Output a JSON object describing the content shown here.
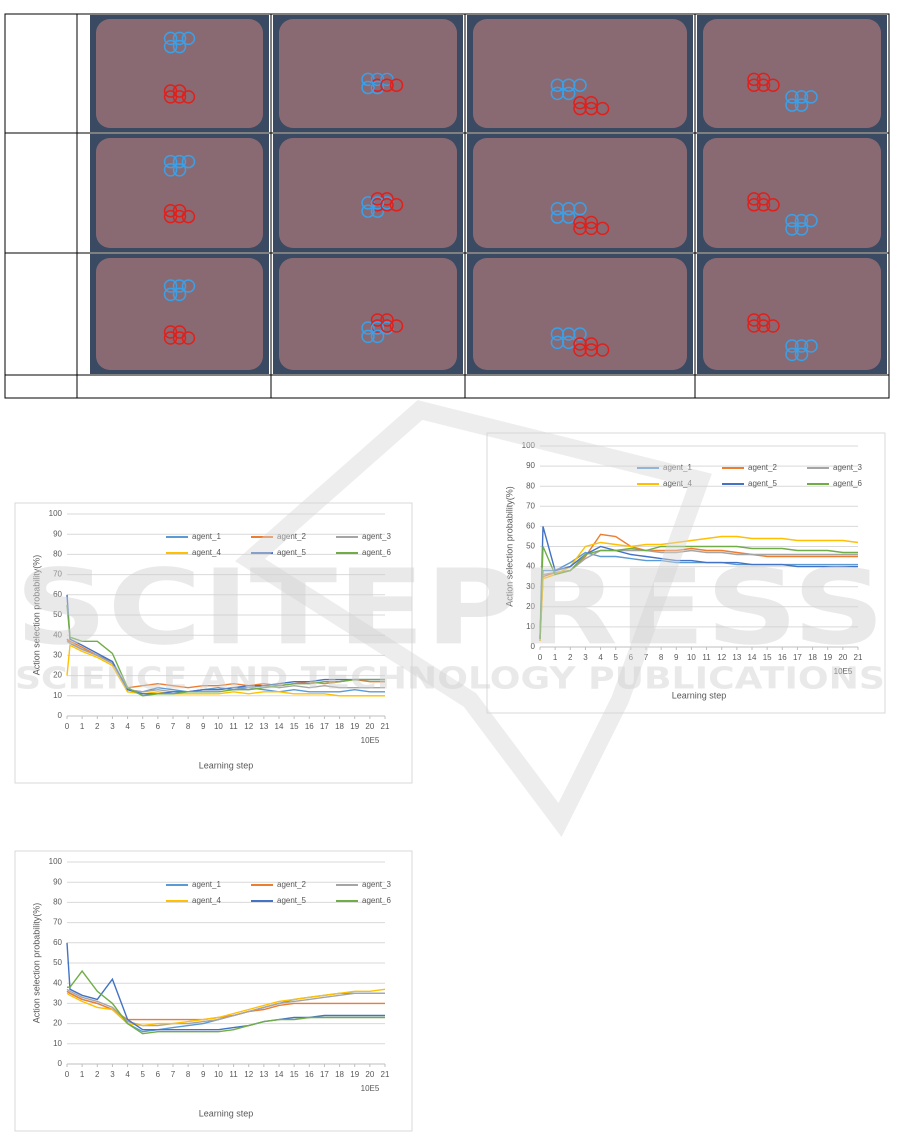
{
  "watermark": {
    "brand": "SCITEPRESS",
    "tagline": "SCIENCE AND TECHNOLOGY PUBLICATIONS"
  },
  "chart_data": [
    {
      "type": "line",
      "x_label": "Learning step",
      "x_unit": "10E5",
      "y_label": "Action selection probability(%)",
      "x": [
        0,
        0.2,
        1,
        2,
        3,
        4,
        5,
        6,
        7,
        8,
        9,
        10,
        11,
        12,
        13,
        14,
        15,
        16,
        17,
        18,
        19,
        20,
        21
      ],
      "xlim": [
        0,
        21
      ],
      "xticks": [
        0,
        1,
        2,
        3,
        4,
        5,
        6,
        7,
        8,
        9,
        10,
        11,
        12,
        13,
        14,
        15,
        16,
        17,
        18,
        19,
        20,
        21
      ],
      "ylim": [
        0,
        100
      ],
      "yticks": [
        0,
        10,
        20,
        30,
        40,
        50,
        60,
        70,
        80,
        90,
        100
      ],
      "grid": true,
      "series": [
        {
          "name": "agent_1",
          "color": "#5B9BD5",
          "values": [
            38,
            36,
            33,
            30,
            27,
            13,
            12,
            14,
            13,
            12,
            13,
            14,
            13,
            14,
            13,
            12,
            13,
            12,
            12,
            12,
            13,
            12,
            12
          ]
        },
        {
          "name": "agent_2",
          "color": "#ED7D31",
          "values": [
            38,
            37,
            34,
            30,
            26,
            14,
            15,
            16,
            15,
            14,
            15,
            15,
            16,
            15,
            16,
            15,
            16,
            17,
            16,
            17,
            18,
            17,
            17
          ]
        },
        {
          "name": "agent_3",
          "color": "#A5A5A5",
          "values": [
            37,
            36,
            33,
            30,
            26,
            13,
            12,
            13,
            12,
            12,
            13,
            13,
            14,
            14,
            15,
            14,
            15,
            14,
            15,
            14,
            14,
            14,
            14
          ]
        },
        {
          "name": "agent_4",
          "color": "#FFC000",
          "values": [
            20,
            35,
            32,
            29,
            25,
            12,
            11,
            12,
            11,
            11,
            11,
            11,
            12,
            11,
            12,
            12,
            11,
            11,
            11,
            10,
            10,
            10,
            10
          ]
        },
        {
          "name": "agent_5",
          "color": "#4472C4",
          "values": [
            60,
            38,
            35,
            31,
            27,
            13,
            11,
            11,
            12,
            12,
            13,
            13,
            14,
            15,
            15,
            16,
            17,
            17,
            18,
            18,
            18,
            18,
            18
          ]
        },
        {
          "name": "agent_6",
          "color": "#70AD47",
          "values": [
            55,
            39,
            37,
            37,
            31,
            14,
            10,
            11,
            11,
            12,
            12,
            12,
            13,
            13,
            14,
            15,
            16,
            16,
            17,
            17,
            18,
            18,
            18
          ]
        }
      ]
    },
    {
      "type": "line",
      "x_label": "Learning step",
      "x_unit": "10E5",
      "y_label": "Action selection probability(%)",
      "x": [
        0,
        0.2,
        1,
        2,
        3,
        4,
        5,
        6,
        7,
        8,
        9,
        10,
        11,
        12,
        13,
        14,
        15,
        16,
        17,
        18,
        19,
        20,
        21
      ],
      "xlim": [
        0,
        21
      ],
      "xticks": [
        0,
        1,
        2,
        3,
        4,
        5,
        6,
        7,
        8,
        9,
        10,
        11,
        12,
        13,
        14,
        15,
        16,
        17,
        18,
        19,
        20,
        21
      ],
      "ylim": [
        0,
        100
      ],
      "yticks": [
        0,
        10,
        20,
        30,
        40,
        50,
        60,
        70,
        80,
        90,
        100
      ],
      "grid": true,
      "series": [
        {
          "name": "agent_1",
          "color": "#5B9BD5",
          "values": [
            5,
            38,
            38,
            42,
            47,
            45,
            45,
            44,
            43,
            43,
            42,
            42,
            42,
            42,
            41,
            41,
            41,
            41,
            41,
            41,
            41,
            41,
            41
          ]
        },
        {
          "name": "agent_2",
          "color": "#ED7D31",
          "values": [
            3,
            35,
            37,
            38,
            45,
            56,
            55,
            50,
            48,
            48,
            48,
            49,
            48,
            48,
            47,
            46,
            45,
            45,
            45,
            45,
            45,
            45,
            45
          ]
        },
        {
          "name": "agent_3",
          "color": "#A5A5A5",
          "values": [
            4,
            36,
            37,
            38,
            44,
            48,
            48,
            48,
            48,
            47,
            47,
            48,
            47,
            47,
            46,
            46,
            46,
            46,
            46,
            46,
            46,
            46,
            46
          ]
        },
        {
          "name": "agent_4",
          "color": "#FFC000",
          "values": [
            3,
            34,
            36,
            40,
            50,
            52,
            51,
            50,
            51,
            51,
            52,
            53,
            54,
            55,
            55,
            54,
            54,
            54,
            53,
            53,
            53,
            53,
            52
          ]
        },
        {
          "name": "agent_5",
          "color": "#4472C4",
          "values": [
            4,
            60,
            38,
            40,
            46,
            50,
            48,
            46,
            45,
            44,
            43,
            43,
            42,
            42,
            42,
            41,
            41,
            41,
            40,
            40,
            40,
            40,
            40
          ]
        },
        {
          "name": "agent_6",
          "color": "#70AD47",
          "values": [
            4,
            50,
            36,
            38,
            46,
            48,
            48,
            49,
            48,
            50,
            50,
            50,
            50,
            50,
            50,
            49,
            49,
            49,
            48,
            48,
            48,
            47,
            47
          ]
        }
      ]
    },
    {
      "type": "line",
      "x_label": "Learning step",
      "x_unit": "10E5",
      "y_label": "Action selection probability(%)",
      "x": [
        0,
        0.2,
        1,
        2,
        3,
        4,
        5,
        6,
        7,
        8,
        9,
        10,
        11,
        12,
        13,
        14,
        15,
        16,
        17,
        18,
        19,
        20,
        21
      ],
      "xlim": [
        0,
        21
      ],
      "xticks": [
        0,
        1,
        2,
        3,
        4,
        5,
        6,
        7,
        8,
        9,
        10,
        11,
        12,
        13,
        14,
        15,
        16,
        17,
        18,
        19,
        20,
        21
      ],
      "ylim": [
        0,
        100
      ],
      "yticks": [
        0,
        10,
        20,
        30,
        40,
        50,
        60,
        70,
        80,
        90,
        100
      ],
      "grid": true,
      "series": [
        {
          "name": "agent_1",
          "color": "#5B9BD5",
          "values": [
            36,
            35,
            32,
            30,
            27,
            20,
            16,
            17,
            18,
            19,
            20,
            22,
            24,
            26,
            28,
            30,
            32,
            33,
            34,
            35,
            35,
            35,
            35
          ]
        },
        {
          "name": "agent_2",
          "color": "#ED7D31",
          "values": [
            36,
            35,
            32,
            30,
            27,
            22,
            22,
            22,
            22,
            22,
            22,
            23,
            24,
            26,
            27,
            29,
            30,
            30,
            30,
            30,
            30,
            30,
            30
          ]
        },
        {
          "name": "agent_3",
          "color": "#A5A5A5",
          "values": [
            37,
            36,
            33,
            31,
            28,
            21,
            19,
            19,
            20,
            20,
            21,
            22,
            24,
            26,
            28,
            30,
            31,
            32,
            33,
            34,
            35,
            35,
            35
          ]
        },
        {
          "name": "agent_4",
          "color": "#FFC000",
          "values": [
            35,
            34,
            31,
            28,
            27,
            20,
            19,
            20,
            20,
            21,
            22,
            23,
            25,
            27,
            29,
            31,
            32,
            33,
            34,
            35,
            36,
            36,
            37
          ]
        },
        {
          "name": "agent_5",
          "color": "#4472C4",
          "values": [
            60,
            37,
            34,
            32,
            42,
            22,
            17,
            17,
            17,
            17,
            17,
            17,
            18,
            19,
            21,
            22,
            23,
            23,
            24,
            24,
            24,
            24,
            24
          ]
        },
        {
          "name": "agent_6",
          "color": "#70AD47",
          "values": [
            38,
            38,
            46,
            36,
            30,
            20,
            15,
            16,
            16,
            16,
            16,
            16,
            17,
            19,
            21,
            22,
            22,
            23,
            23,
            23,
            23,
            23,
            23
          ]
        }
      ]
    }
  ]
}
